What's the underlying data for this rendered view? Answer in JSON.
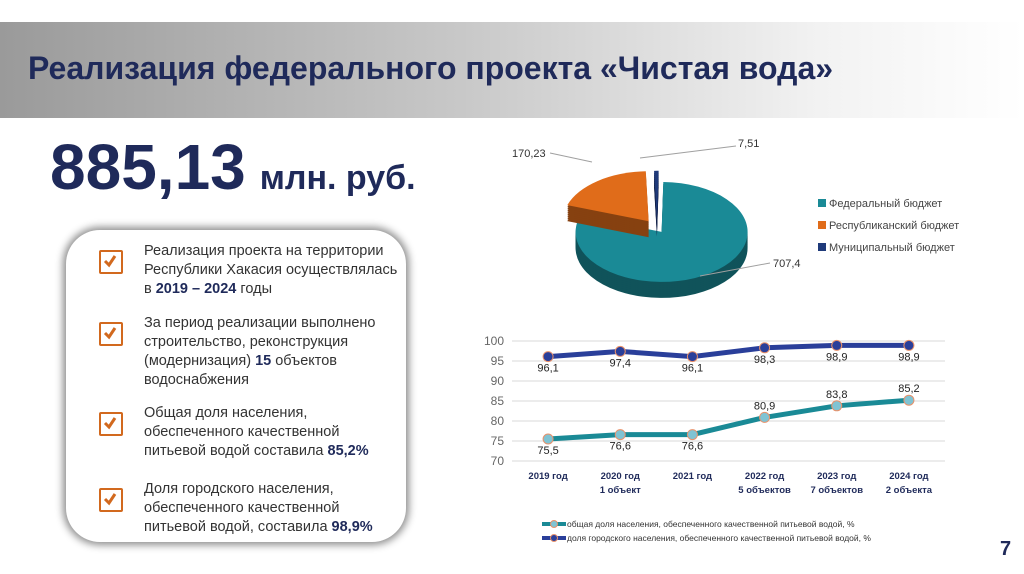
{
  "header": {
    "title": "Реализация федерального проекта «Чистая вода»"
  },
  "total": {
    "value": "885,13",
    "unit": "млн. руб."
  },
  "card": {
    "items": [
      {
        "text": "Реализация проекта на территории Республики Хакасия осуществлялась в ",
        "highlight": "2019 – 2024",
        "suffix": " годы"
      },
      {
        "text": "За период реализации выполнено строительство, реконструкция (модернизация) ",
        "highlight": "15",
        "suffix": " объектов водоснабжения"
      },
      {
        "text": "Общая доля населения, обеспеченного качественной питьевой водой составила ",
        "highlight": "85,2%",
        "suffix": ""
      },
      {
        "text": "Доля городского населения, обеспеченного качественной питьевой водой, составила ",
        "highlight": "98,9%",
        "suffix": ""
      }
    ]
  },
  "page_number": "7",
  "chart_data": [
    {
      "type": "pie",
      "style": "3d-exploded",
      "legend_position": "right",
      "slices": [
        {
          "name": "Федеральный бюджет",
          "value": 707.4,
          "label": "707,4",
          "color": "#1a8a96"
        },
        {
          "name": "Республиканский бюджет",
          "value": 170.23,
          "label": "170,23",
          "color": "#e06c1a"
        },
        {
          "name": "Муниципальный бюджет",
          "value": 7.51,
          "label": "7,51",
          "color": "#1f3a7a"
        }
      ]
    },
    {
      "type": "line",
      "categories": [
        [
          "2019 год"
        ],
        [
          "2020 год",
          "1 объект"
        ],
        [
          "2021 год"
        ],
        [
          "2022 год",
          "5 объектов"
        ],
        [
          "2023 год",
          "7 объектов"
        ],
        [
          "2024 год",
          "2 объекта"
        ]
      ],
      "ylim": [
        70,
        100
      ],
      "yticks": [
        70,
        75,
        80,
        85,
        90,
        95,
        100
      ],
      "grid": true,
      "legend_position": "bottom",
      "series": [
        {
          "name": "общая доля населения, обеспеченного качественной питьевой водой, %",
          "values": [
            75.5,
            76.6,
            76.6,
            80.9,
            83.8,
            85.2
          ],
          "labels": [
            "75,5",
            "76,6",
            "76,6",
            "80,9",
            "83,8",
            "85,2"
          ],
          "color": "#1a8a96"
        },
        {
          "name": "доля городского населения, обеспеченного качественной питьевой водой, %",
          "values": [
            96.1,
            97.4,
            96.1,
            98.3,
            98.9,
            98.9
          ],
          "labels": [
            "96,1",
            "97,4",
            "96,1",
            "98,3",
            "98,9",
            "98,9"
          ],
          "color": "#2a3f9a"
        }
      ]
    }
  ]
}
